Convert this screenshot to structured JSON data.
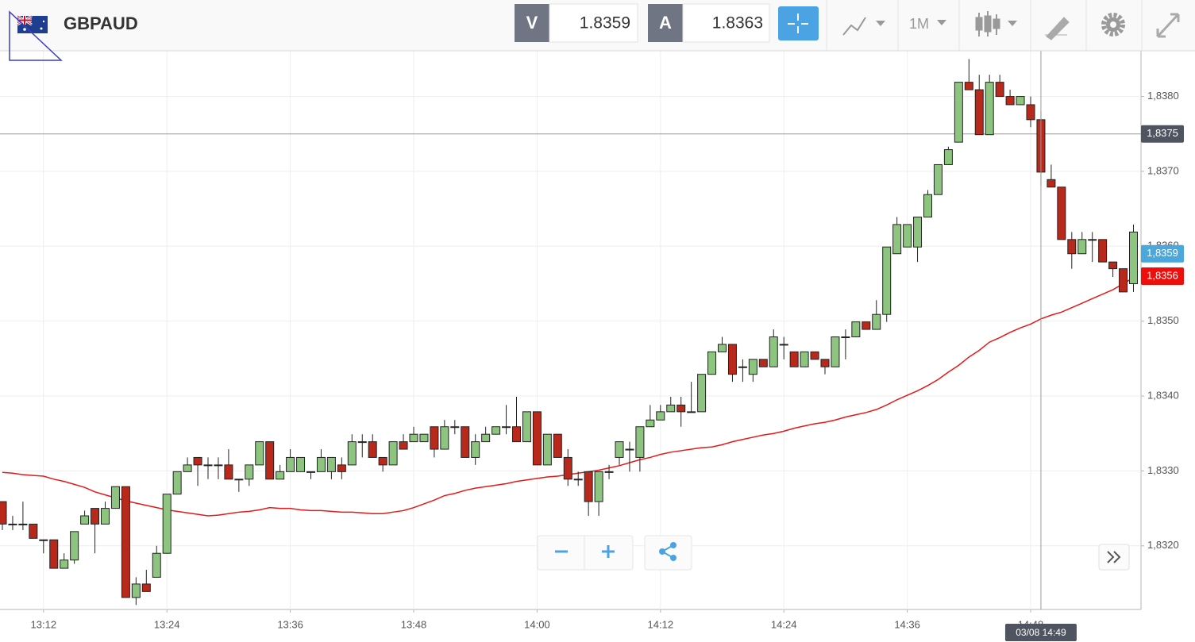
{
  "header": {
    "symbol": "GBPAUD",
    "sell": {
      "label": "V",
      "price": "1.8359"
    },
    "buy": {
      "label": "A",
      "price": "1.8363"
    },
    "timeframe": "1M"
  },
  "chart_data": {
    "type": "candlestick",
    "categories": [
      null,
      null,
      null,
      null,
      "13:12",
      null,
      null,
      null,
      null,
      null,
      null,
      null,
      null,
      null,
      null,
      null,
      "13:24",
      null,
      null,
      null,
      null,
      null,
      null,
      null,
      null,
      null,
      null,
      null,
      "13:36",
      null,
      null,
      null,
      null,
      null,
      null,
      null,
      null,
      null,
      null,
      null,
      "13:48",
      null,
      null,
      null,
      null,
      null,
      null,
      null,
      null,
      null,
      null,
      null,
      "14:00",
      null,
      null,
      null,
      null,
      null,
      null,
      null,
      null,
      null,
      null,
      null,
      "14:12",
      null,
      null,
      null,
      null,
      null,
      null,
      null,
      null,
      null,
      null,
      null,
      "14:24",
      null,
      null,
      null,
      null,
      null,
      null,
      null,
      null,
      null,
      null,
      null,
      "14:36",
      null,
      null,
      null,
      null,
      null,
      null,
      null,
      null,
      null,
      null,
      null,
      "14:48",
      null,
      null,
      null,
      null,
      null,
      null,
      null,
      null,
      null,
      null
    ],
    "open": [
      1.83259,
      1.83229,
      1.83229,
      1.83229,
      1.83208,
      1.83208,
      1.8317,
      1.83181,
      1.83229,
      1.8325,
      1.83229,
      1.8325,
      1.83279,
      1.83131,
      1.83149,
      1.83158,
      1.8319,
      1.83269,
      1.83299,
      1.83318,
      1.83308,
      1.83308,
      1.83308,
      1.83289,
      1.83289,
      1.83308,
      1.83339,
      1.83289,
      1.83299,
      1.83299,
      1.83299,
      1.83299,
      1.83299,
      1.83308,
      1.83308,
      1.83339,
      1.83339,
      1.83318,
      1.83308,
      1.83339,
      1.83339,
      1.83339,
      1.83359,
      1.83329,
      1.83359,
      1.83359,
      1.83318,
      1.83339,
      1.83349,
      1.83359,
      1.83359,
      1.83339,
      1.83379,
      1.83308,
      1.83349,
      1.83318,
      1.83289,
      1.83299,
      1.83259,
      1.83299,
      1.83318,
      1.83329,
      1.83318,
      1.83359,
      1.83368,
      1.83379,
      1.83388,
      1.83379,
      1.83379,
      1.83429,
      1.83459,
      1.83469,
      1.83439,
      1.83429,
      1.83449,
      1.83439,
      1.83469,
      1.83459,
      1.83439,
      1.83459,
      1.83449,
      1.83439,
      1.83479,
      1.83479,
      1.83499,
      1.83489,
      1.83509,
      1.8359,
      1.83599,
      1.83599,
      1.83639,
      1.83669,
      1.83709,
      1.83739,
      1.83819,
      1.83809,
      1.83749,
      1.83819,
      1.838,
      1.83789,
      1.83789,
      1.83769,
      1.83689,
      1.83679,
      1.83609,
      1.8359,
      1.83609,
      1.83609,
      1.83579,
      1.8357,
      1.8355
    ],
    "high": [
      1.83259,
      1.8324,
      1.83259,
      1.83229,
      1.83208,
      1.83208,
      1.8319,
      1.83219,
      1.83247,
      1.8325,
      1.83259,
      1.83279,
      1.83279,
      1.83158,
      1.83168,
      1.832,
      1.83269,
      1.83299,
      1.83318,
      1.83318,
      1.83318,
      1.83318,
      1.83329,
      1.83289,
      1.83308,
      1.83339,
      1.83339,
      1.83308,
      1.83329,
      1.83318,
      1.83299,
      1.83329,
      1.83318,
      1.83318,
      1.83349,
      1.83349,
      1.83349,
      1.83318,
      1.83339,
      1.83349,
      1.83359,
      1.83349,
      1.83359,
      1.83368,
      1.83368,
      1.83359,
      1.83349,
      1.83359,
      1.83359,
      1.83388,
      1.83399,
      1.83379,
      1.83379,
      1.83349,
      1.83349,
      1.83329,
      1.83299,
      1.83299,
      1.83299,
      1.83308,
      1.83339,
      1.83339,
      1.83359,
      1.83388,
      1.83388,
      1.83399,
      1.83399,
      1.83419,
      1.83429,
      1.83459,
      1.83479,
      1.83469,
      1.83449,
      1.83449,
      1.83449,
      1.83489,
      1.83479,
      1.83459,
      1.83459,
      1.83459,
      1.83449,
      1.83479,
      1.83489,
      1.83499,
      1.83499,
      1.83528,
      1.83599,
      1.83639,
      1.83629,
      1.83639,
      1.83675,
      1.83709,
      1.83733,
      1.83819,
      1.8385,
      1.83829,
      1.83829,
      1.83829,
      1.83809,
      1.838,
      1.838,
      1.8378,
      1.83709,
      1.83679,
      1.83619,
      1.83619,
      1.83619,
      1.83609,
      1.83579,
      1.8357,
      1.83629
    ],
    "low": [
      1.83221,
      1.83221,
      1.83221,
      1.8321,
      1.8319,
      1.8317,
      1.8317,
      1.83176,
      1.83229,
      1.8319,
      1.83229,
      1.8325,
      1.83131,
      1.83121,
      1.83139,
      1.83158,
      1.8319,
      1.83269,
      1.83299,
      1.8328,
      1.83289,
      1.83289,
      1.83289,
      1.83272,
      1.8328,
      1.83308,
      1.83289,
      1.83289,
      1.83299,
      1.83299,
      1.83289,
      1.83299,
      1.83289,
      1.83289,
      1.83308,
      1.83318,
      1.83318,
      1.83299,
      1.83308,
      1.83329,
      1.83339,
      1.83339,
      1.83318,
      1.83329,
      1.83349,
      1.83318,
      1.83308,
      1.83339,
      1.83349,
      1.83349,
      1.83339,
      1.83339,
      1.83308,
      1.83308,
      1.83318,
      1.8328,
      1.8328,
      1.8324,
      1.8324,
      1.83289,
      1.83308,
      1.83299,
      1.83299,
      1.83359,
      1.83368,
      1.83379,
      1.83359,
      1.83379,
      1.83379,
      1.83429,
      1.83459,
      1.83419,
      1.83419,
      1.83419,
      1.83439,
      1.83439,
      1.83449,
      1.83439,
      1.83439,
      1.83449,
      1.83429,
      1.83439,
      1.83449,
      1.83479,
      1.83489,
      1.83489,
      1.83499,
      1.8359,
      1.83599,
      1.83579,
      1.83639,
      1.83669,
      1.83709,
      1.83739,
      1.83809,
      1.83749,
      1.83749,
      1.838,
      1.83789,
      1.83789,
      1.83759,
      1.83681,
      1.83679,
      1.83609,
      1.8357,
      1.8359,
      1.83579,
      1.83579,
      1.83559,
      1.83539,
      1.83539
    ],
    "close": [
      1.83229,
      1.83229,
      1.83229,
      1.8321,
      1.83208,
      1.8317,
      1.83181,
      1.83219,
      1.8324,
      1.83229,
      1.8325,
      1.83279,
      1.83131,
      1.83149,
      1.83139,
      1.8319,
      1.83269,
      1.83299,
      1.83308,
      1.83308,
      1.83308,
      1.83308,
      1.83289,
      1.83289,
      1.83308,
      1.83339,
      1.83289,
      1.83299,
      1.83318,
      1.83318,
      1.83299,
      1.83318,
      1.83318,
      1.83299,
      1.83339,
      1.83339,
      1.83318,
      1.83308,
      1.83339,
      1.83329,
      1.83349,
      1.83349,
      1.83329,
      1.83359,
      1.83359,
      1.83318,
      1.83339,
      1.83349,
      1.83359,
      1.83359,
      1.83339,
      1.83379,
      1.83308,
      1.83349,
      1.83318,
      1.83289,
      1.83289,
      1.83259,
      1.83299,
      1.83299,
      1.83339,
      1.83329,
      1.83359,
      1.83368,
      1.83379,
      1.83388,
      1.83379,
      1.83379,
      1.83429,
      1.83459,
      1.83469,
      1.83429,
      1.83439,
      1.83449,
      1.83439,
      1.83479,
      1.83469,
      1.83439,
      1.83459,
      1.83449,
      1.83439,
      1.83479,
      1.83479,
      1.83499,
      1.83489,
      1.83509,
      1.83599,
      1.83629,
      1.83629,
      1.83639,
      1.83669,
      1.83709,
      1.83729,
      1.83819,
      1.83809,
      1.83749,
      1.83819,
      1.838,
      1.83789,
      1.838,
      1.83769,
      1.83699,
      1.83679,
      1.83609,
      1.8359,
      1.83609,
      1.83609,
      1.83579,
      1.8357,
      1.83539,
      1.83619
    ],
    "up_color": "#8dc47f",
    "down_color": "#b8291c",
    "overlay": {
      "color": "#e5191a",
      "values": [
        1.83298,
        1.83297,
        1.83295,
        1.83294,
        1.83293,
        1.83289,
        1.83286,
        1.83282,
        1.83278,
        1.83272,
        1.83268,
        1.83264,
        1.8326,
        1.83257,
        1.83254,
        1.83251,
        1.83248,
        1.83246,
        1.83244,
        1.83242,
        1.8324,
        1.83241,
        1.83243,
        1.83245,
        1.83246,
        1.83248,
        1.83251,
        1.8325,
        1.8325,
        1.83248,
        1.83247,
        1.83247,
        1.83246,
        1.83245,
        1.83245,
        1.83244,
        1.83243,
        1.83243,
        1.83245,
        1.83247,
        1.83251,
        1.83256,
        1.83261,
        1.83267,
        1.8327,
        1.83274,
        1.83277,
        1.83279,
        1.83281,
        1.83283,
        1.83286,
        1.83288,
        1.8329,
        1.83292,
        1.83293,
        1.83295,
        1.83297,
        1.83299,
        1.83301,
        1.83304,
        1.83307,
        1.83311,
        1.83315,
        1.83318,
        1.83322,
        1.83325,
        1.83327,
        1.83329,
        1.83331,
        1.83332,
        1.83335,
        1.83339,
        1.83342,
        1.83345,
        1.83348,
        1.8335,
        1.83353,
        1.83357,
        1.8336,
        1.83363,
        1.83365,
        1.83368,
        1.83372,
        1.83375,
        1.83378,
        1.83382,
        1.83388,
        1.83395,
        1.83401,
        1.83407,
        1.83414,
        1.83422,
        1.83432,
        1.83441,
        1.83452,
        1.83461,
        1.83472,
        1.83478,
        1.83485,
        1.83491,
        1.83496,
        1.83503,
        1.83508,
        1.83512,
        1.83518,
        1.83524,
        1.8353,
        1.83536,
        1.83542,
        1.8355,
        1.83558
      ]
    },
    "ylim": [
      1.83115,
      1.83861
    ],
    "yticks": [
      {
        "value": 1.832,
        "label": "1,8320"
      },
      {
        "value": 1.833,
        "label": "1,8330"
      },
      {
        "value": 1.834,
        "label": "1,8340"
      },
      {
        "value": 1.835,
        "label": "1,8350"
      },
      {
        "value": 1.836,
        "label": "1,8360"
      },
      {
        "value": 1.837,
        "label": "1,8370"
      },
      {
        "value": 1.838,
        "label": "1,8380"
      }
    ],
    "grid": true,
    "price_markers": [
      {
        "value": 1.8359,
        "label": "1,8359",
        "color": "#4ba8dc"
      },
      {
        "value": 1.8356,
        "label": "1,8356",
        "color": "#ee0f0c"
      }
    ],
    "crosshair": {
      "y": {
        "value": 1.8375,
        "label": "1,8375"
      },
      "x": {
        "value": 101,
        "label": "03/08 14:49"
      }
    }
  }
}
